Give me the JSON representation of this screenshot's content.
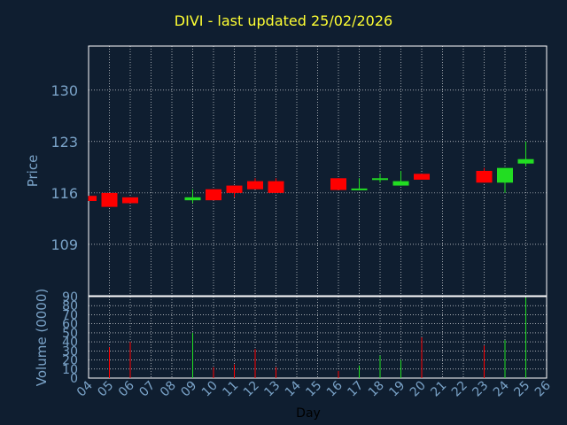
{
  "chart_data": {
    "type": "candlestick",
    "title": "DIVI - last updated 25/02/2026",
    "price_label": "Price",
    "volume_label": "Volume (0000)",
    "xlabel": "Day",
    "colors": {
      "up": "#22dd22",
      "down": "#ff0000",
      "text": "#7aa3c8",
      "title": "#ffff33",
      "grid": "#ffffff",
      "background": "#0f1e30"
    },
    "x_ticks": [
      "04",
      "05",
      "06",
      "07",
      "08",
      "09",
      "10",
      "11",
      "12",
      "13",
      "14",
      "15",
      "16",
      "17",
      "18",
      "19",
      "20",
      "21",
      "22",
      "23",
      "24",
      "25",
      "26"
    ],
    "price_ticks": [
      109,
      116,
      123,
      130
    ],
    "price_ylim": [
      102,
      136
    ],
    "volume_ticks": [
      0,
      10,
      20,
      30,
      40,
      50,
      60,
      70,
      80,
      90
    ],
    "volume_ylim": [
      0,
      90
    ],
    "candles": [
      {
        "day": 4.0,
        "open": 115.6,
        "high": 115.6,
        "low": 114.9,
        "close": 114.9,
        "volume": 0
      },
      {
        "day": 5.0,
        "open": 116.0,
        "high": 116.0,
        "low": 114.1,
        "close": 114.1,
        "volume": 34
      },
      {
        "day": 6.0,
        "open": 115.4,
        "high": 115.4,
        "low": 114.6,
        "close": 114.6,
        "volume": 40
      },
      {
        "day": 9.0,
        "open": 115.0,
        "high": 116.5,
        "low": 114.6,
        "close": 115.4,
        "volume": 50
      },
      {
        "day": 10.0,
        "open": 116.5,
        "high": 116.5,
        "low": 115.0,
        "close": 115.0,
        "volume": 12
      },
      {
        "day": 11.0,
        "open": 117.0,
        "high": 117.0,
        "low": 115.4,
        "close": 116.0,
        "volume": 15
      },
      {
        "day": 12.0,
        "open": 117.6,
        "high": 118.0,
        "low": 116.5,
        "close": 116.5,
        "volume": 32
      },
      {
        "day": 13.0,
        "open": 117.6,
        "high": 118.0,
        "low": 116.0,
        "close": 116.0,
        "volume": 12
      },
      {
        "day": 16.0,
        "open": 118.0,
        "high": 118.0,
        "low": 116.4,
        "close": 116.4,
        "volume": 8
      },
      {
        "day": 17.0,
        "open": 116.4,
        "high": 118.0,
        "low": 116.4,
        "close": 116.6,
        "volume": 14
      },
      {
        "day": 18.0,
        "open": 117.8,
        "high": 118.6,
        "low": 117.4,
        "close": 118.0,
        "volume": 25
      },
      {
        "day": 19.0,
        "open": 117.0,
        "high": 119.0,
        "low": 117.0,
        "close": 117.6,
        "volume": 20
      },
      {
        "day": 20.0,
        "open": 118.6,
        "high": 118.6,
        "low": 117.8,
        "close": 117.8,
        "volume": 45
      },
      {
        "day": 23.0,
        "open": 119.0,
        "high": 119.4,
        "low": 117.4,
        "close": 117.4,
        "volume": 36
      },
      {
        "day": 24.0,
        "open": 117.4,
        "high": 119.4,
        "low": 116.0,
        "close": 119.4,
        "volume": 42
      },
      {
        "day": 25.0,
        "open": 120.0,
        "high": 123.0,
        "low": 119.6,
        "close": 120.6,
        "volume": 89
      }
    ]
  }
}
